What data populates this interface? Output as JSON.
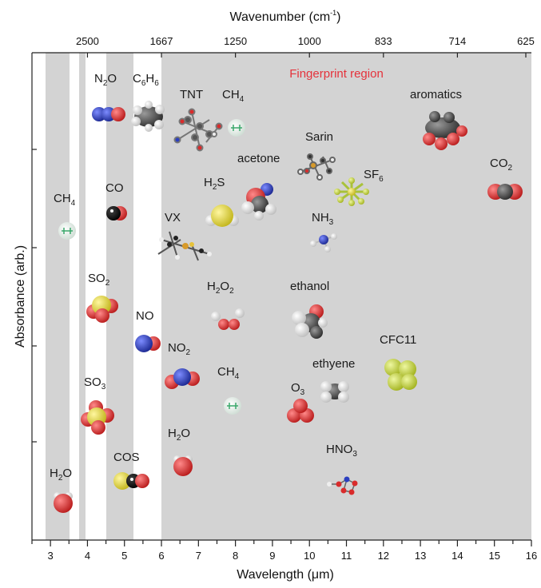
{
  "top_axis": {
    "title_main": "Wavenumber (cm",
    "title_sup": "-1",
    "title_end": ")",
    "ticks": [
      {
        "label": "2500",
        "wavelength": 4.0
      },
      {
        "label": "1667",
        "wavelength": 6.0
      },
      {
        "label": "1250",
        "wavelength": 8.0
      },
      {
        "label": "1000",
        "wavelength": 10.0
      },
      {
        "label": "833",
        "wavelength": 12.0
      },
      {
        "label": "714",
        "wavelength": 14.0
      },
      {
        "label": "625",
        "wavelength": 16.0
      }
    ]
  },
  "bottom_axis": {
    "title": "Wavelength (μm)",
    "ticks": [
      "3",
      "4",
      "5",
      "6",
      "7",
      "8",
      "9",
      "10",
      "11",
      "12",
      "13",
      "14",
      "15",
      "16"
    ],
    "range": [
      2.5,
      16.0
    ]
  },
  "y_axis": {
    "title": "Absorbance (arb.)"
  },
  "fingerprint_label": "Fingerprint region",
  "colors": {
    "band_gray": "#d3d3d3",
    "region_label": "#e5323b",
    "oxygen": "#d92b2b",
    "nitrogen": "#2b3fbf",
    "carbon": "#4a4a4a",
    "hydrogen": "#f2f2f2",
    "sulfur": "#e4dc3a",
    "fluorine": "#c8d84a",
    "chlorine": "#b6d23c"
  },
  "molecules": [
    {
      "id": "n2o",
      "label": "N",
      "sub": "2",
      "rest": "O",
      "icon": "n2o-molecule-icon"
    },
    {
      "id": "c6h6",
      "label": "C",
      "sub": "6",
      "rest": "H",
      "sub2": "6",
      "icon": "benzene-molecule-icon"
    },
    {
      "id": "tnt",
      "label": "TNT",
      "icon": "tnt-molecule-icon"
    },
    {
      "id": "ch4-top",
      "label": "CH",
      "sub": "4",
      "icon": "methane-molecule-icon"
    },
    {
      "id": "aromatics",
      "label": "aromatics",
      "icon": "aromatics-molecule-icon"
    },
    {
      "id": "sarin",
      "label": "Sarin",
      "icon": "sarin-molecule-icon"
    },
    {
      "id": "acetone",
      "label": "acetone",
      "icon": "acetone-molecule-icon"
    },
    {
      "id": "sf6",
      "label": "SF",
      "sub": "6",
      "icon": "sf6-molecule-icon"
    },
    {
      "id": "co2",
      "label": "CO",
      "sub": "2",
      "icon": "co2-molecule-icon"
    },
    {
      "id": "ch4-left",
      "label": "CH",
      "sub": "4",
      "icon": "methane-molecule-icon"
    },
    {
      "id": "co",
      "label": "CO",
      "icon": "co-molecule-icon"
    },
    {
      "id": "h2s",
      "label": "H",
      "sub": "2",
      "rest": "S",
      "icon": "h2s-molecule-icon"
    },
    {
      "id": "vx",
      "label": "VX",
      "icon": "vx-molecule-icon"
    },
    {
      "id": "nh3",
      "label": "NH",
      "sub": "3",
      "icon": "ammonia-molecule-icon"
    },
    {
      "id": "so2",
      "label": "SO",
      "sub": "2",
      "icon": "so2-molecule-icon"
    },
    {
      "id": "h2o2",
      "label": "H",
      "sub": "2",
      "rest": "O",
      "sub2": "2",
      "icon": "h2o2-molecule-icon"
    },
    {
      "id": "ethanol",
      "label": "ethanol",
      "icon": "ethanol-molecule-icon"
    },
    {
      "id": "no",
      "label": "NO",
      "icon": "no-molecule-icon"
    },
    {
      "id": "no2",
      "label": "NO",
      "sub": "2",
      "icon": "no2-molecule-icon"
    },
    {
      "id": "cfc11",
      "label": "CFC11",
      "icon": "cfc11-molecule-icon"
    },
    {
      "id": "ethyene",
      "label": "ethyene",
      "icon": "ethylene-molecule-icon"
    },
    {
      "id": "so3",
      "label": "SO",
      "sub": "3",
      "icon": "so3-molecule-icon"
    },
    {
      "id": "ch4-mid",
      "label": "CH",
      "sub": "4",
      "icon": "methane-molecule-icon"
    },
    {
      "id": "o3",
      "label": "O",
      "sub": "3",
      "icon": "ozone-molecule-icon"
    },
    {
      "id": "h2o-mid",
      "label": "H",
      "sub": "2",
      "rest": "O",
      "icon": "water-molecule-icon"
    },
    {
      "id": "cos",
      "label": "COS",
      "icon": "cos-molecule-icon"
    },
    {
      "id": "hno3",
      "label": "HNO",
      "sub": "3",
      "icon": "nitric-acid-molecule-icon"
    },
    {
      "id": "h2o-left",
      "label": "H",
      "sub": "2",
      "rest": "O",
      "icon": "water-molecule-icon"
    }
  ]
}
